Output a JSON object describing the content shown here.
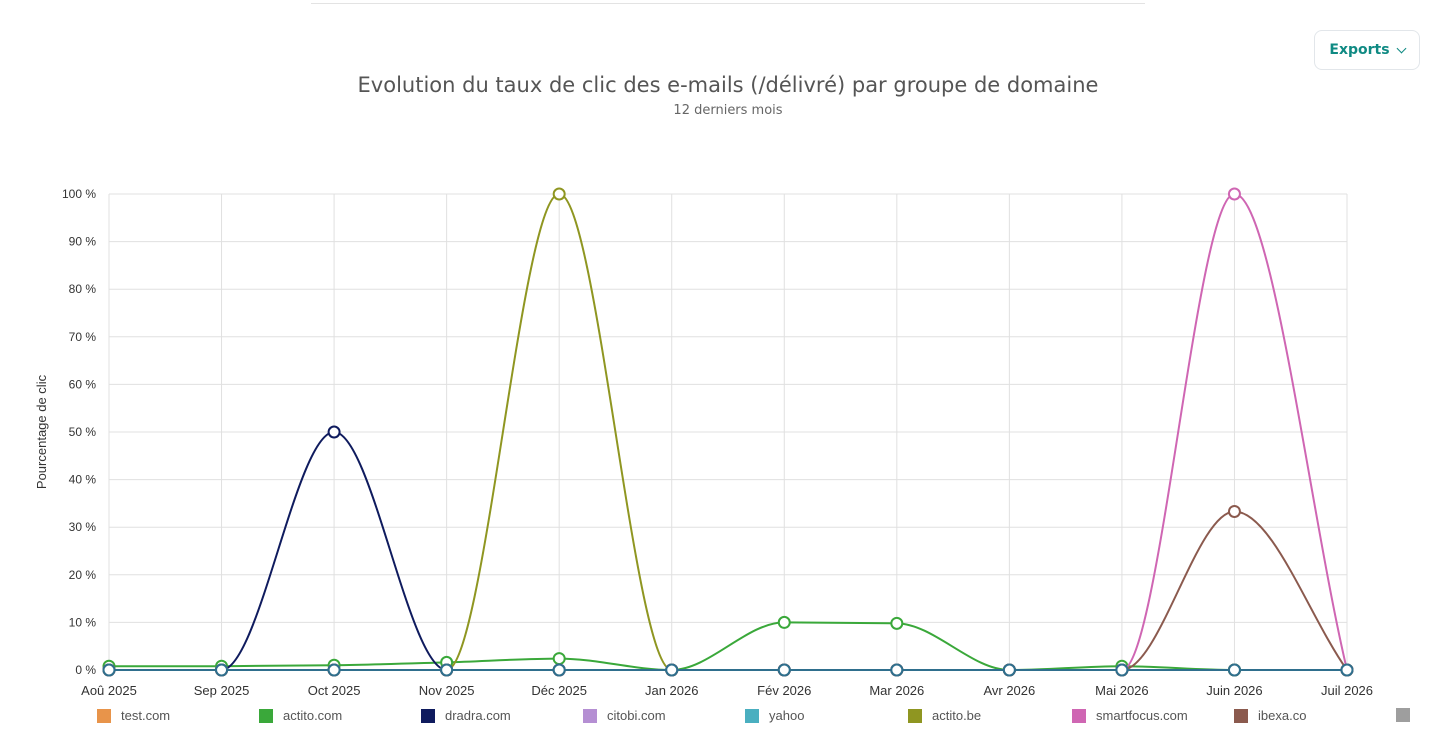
{
  "header": {
    "exports_label": "Exports"
  },
  "chart_data": {
    "type": "line",
    "title": "Evolution du taux de clic des e-mails (/délivré) par groupe de domaine",
    "subtitle": "12 derniers mois",
    "xlabel": "",
    "ylabel": "Pourcentage de clic",
    "categories": [
      "Aoû 2025",
      "Sep 2025",
      "Oct 2025",
      "Nov 2025",
      "Déc 2025",
      "Jan 2026",
      "Fév 2026",
      "Mar 2026",
      "Avr 2026",
      "Mai 2026",
      "Juin 2026",
      "Juil 2026"
    ],
    "ylim": [
      0,
      100
    ],
    "yticks": [
      "0 %",
      "10 %",
      "20 %",
      "30 %",
      "40 %",
      "50 %",
      "60 %",
      "70 %",
      "80 %",
      "90 %",
      "100 %"
    ],
    "grid": true,
    "legend_position": "bottom",
    "series": [
      {
        "name": "test.com",
        "color": "#e8944a",
        "values": [
          0,
          0,
          0,
          0,
          0,
          0,
          0,
          0,
          0,
          0,
          0,
          0
        ]
      },
      {
        "name": "actito.com",
        "color": "#3aa83a",
        "values": [
          0.8,
          0.8,
          1.0,
          1.6,
          2.4,
          0,
          10,
          9.8,
          0,
          0.8,
          0,
          0
        ]
      },
      {
        "name": "dradra.com",
        "color": "#0f1b5e",
        "values": [
          0,
          0,
          50,
          0,
          0,
          0,
          0,
          0,
          0,
          0,
          0,
          0
        ]
      },
      {
        "name": "citobi.com",
        "color": "#b58fd3",
        "values": [
          0,
          0,
          0,
          0,
          0,
          0,
          0,
          0,
          0,
          0,
          0,
          0
        ]
      },
      {
        "name": "yahoo",
        "color": "#4aafc0",
        "values": [
          0,
          0,
          0,
          0,
          0,
          0,
          0,
          0,
          0,
          0,
          0,
          0
        ]
      },
      {
        "name": "actito.be",
        "color": "#8f9621",
        "values": [
          0,
          0,
          0,
          0,
          100,
          0,
          0,
          0,
          0,
          0,
          0,
          0
        ]
      },
      {
        "name": "smartfocus.com",
        "color": "#cf66b3",
        "values": [
          0,
          0,
          0,
          0,
          0,
          0,
          0,
          0,
          0,
          0,
          100,
          0
        ]
      },
      {
        "name": "ibexa.co",
        "color": "#8b5a4e",
        "values": [
          0,
          0,
          0,
          0,
          0,
          0,
          0,
          0,
          0,
          0,
          33.3,
          0
        ]
      },
      {
        "name": "",
        "color": "#2f6f8d",
        "values": [
          0,
          0,
          0,
          0,
          0,
          0,
          0,
          0,
          0,
          0,
          0,
          0
        ]
      }
    ],
    "legend_extra_color": "#9e9e9e"
  }
}
